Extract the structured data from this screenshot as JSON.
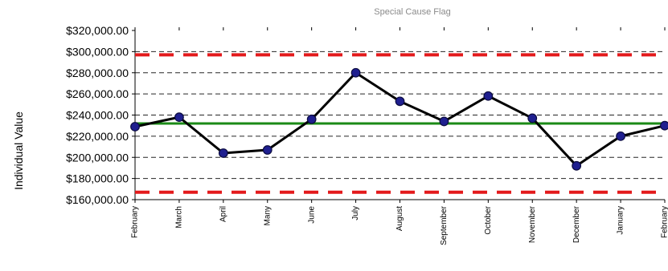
{
  "chart_data": {
    "type": "line",
    "title": "Special Cause Flag",
    "ylabel": "Individual Value",
    "xlabel": "",
    "categories": [
      "February",
      "March",
      "April",
      "Many",
      "June",
      "July",
      "August",
      "September",
      "October",
      "November",
      "December",
      "January",
      "February"
    ],
    "series": [
      {
        "values": [
          229000,
          238000,
          204000,
          207000,
          236000,
          280000,
          253000,
          234000,
          258000,
          237000,
          192000,
          220000,
          230000
        ]
      }
    ],
    "reference_lines": {
      "center_line": 232000,
      "upper_control_limit": 297000,
      "lower_control_limit": 167000
    },
    "ylim": [
      160000,
      320000
    ],
    "yticks": [
      "$160,000.00",
      "$180,000.00",
      "$200,000.00",
      "$220,000.00",
      "$240,000.00",
      "$260,000.00",
      "$280,000.00",
      "$300,000.00",
      "$320,000.00"
    ],
    "grid": true,
    "colors": {
      "series": "#000000",
      "marker_fill": "#1f1f8f",
      "marker_stroke": "#0b0b3f",
      "center_line": "#1b8a16",
      "control_limits": "#e31a1c",
      "grid": "#000000"
    }
  }
}
